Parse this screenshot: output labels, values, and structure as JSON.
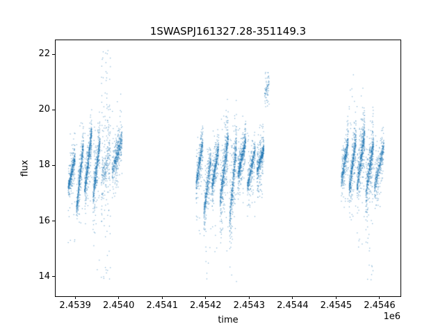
{
  "chart_data": {
    "type": "scatter",
    "title": "1SWASPJ161327.28-351149.3",
    "xlabel": "time",
    "ylabel": "flux",
    "x_offset_factor": "1e6",
    "xlim": [
      2453855,
      2454648
    ],
    "ylim": [
      13.3,
      22.5
    ],
    "xticks": {
      "values": [
        2453900,
        2454000,
        2454100,
        2454200,
        2454300,
        2454400,
        2454500,
        2454600
      ],
      "labels": [
        "2.4539",
        "2.4540",
        "2.4541",
        "2.4542",
        "2.4543",
        "2.4544",
        "2.4545",
        "2.4546"
      ]
    },
    "yticks": {
      "values": [
        14,
        16,
        18,
        20,
        22
      ],
      "labels": [
        "14",
        "16",
        "18",
        "20",
        "22"
      ]
    },
    "grid": false,
    "legend": null,
    "marker": {
      "color": "#1f77b4",
      "size": 1.2,
      "alpha": 0.6
    },
    "description": "Light curve: ~8500 points in three seasonal groups of nightly vertical streaks, flux mostly 16-20, extremes 13.7 to 22.2",
    "clusters": [
      {
        "x": [
          2453884,
          2453900
        ],
        "y_trend": [
          17.2,
          18.3
        ],
        "sigma": 0.35,
        "n": 400,
        "outlier_frac": 0.04,
        "outlier_range": [
          15.0,
          19.2
        ]
      },
      {
        "x": [
          2453903,
          2453919
        ],
        "y_trend": [
          16.4,
          18.8
        ],
        "sigma": 0.4,
        "n": 450,
        "outlier_frac": 0.03,
        "outlier_range": [
          15.9,
          19.6
        ]
      },
      {
        "x": [
          2453922,
          2453938
        ],
        "y_trend": [
          17.1,
          19.2
        ],
        "sigma": 0.45,
        "n": 520,
        "outlier_frac": 0.03,
        "outlier_range": [
          16.3,
          20.0
        ]
      },
      {
        "x": [
          2453941,
          2453957
        ],
        "y_trend": [
          16.8,
          18.9
        ],
        "sigma": 0.5,
        "n": 450,
        "outlier_frac": 0.06,
        "outlier_range": [
          14.2,
          19.8
        ]
      },
      {
        "x": [
          2453960,
          2453981
        ],
        "y_trend": [
          17.4,
          18.6
        ],
        "sigma": 0.9,
        "n": 280,
        "outlier_frac": 0.3,
        "outlier_range": [
          13.9,
          22.2
        ]
      },
      {
        "x": [
          2453985,
          2454008
        ],
        "y_trend": [
          17.8,
          19.0
        ],
        "sigma": 0.5,
        "n": 430,
        "outlier_frac": 0.05,
        "outlier_range": [
          16.5,
          20.6
        ]
      },
      {
        "x": [
          2454178,
          2454194
        ],
        "y_trend": [
          17.3,
          18.9
        ],
        "sigma": 0.4,
        "n": 380,
        "outlier_frac": 0.04,
        "outlier_range": [
          15.5,
          19.5
        ]
      },
      {
        "x": [
          2454196,
          2454212
        ],
        "y_trend": [
          16.3,
          18.2
        ],
        "sigma": 0.5,
        "n": 380,
        "outlier_frac": 0.06,
        "outlier_range": [
          13.9,
          19.0
        ]
      },
      {
        "x": [
          2454214,
          2454230
        ],
        "y_trend": [
          17.2,
          18.6
        ],
        "sigma": 0.4,
        "n": 420,
        "outlier_frac": 0.05,
        "outlier_range": [
          14.6,
          19.4
        ]
      },
      {
        "x": [
          2454233,
          2454252
        ],
        "y_trend": [
          16.7,
          19.0
        ],
        "sigma": 0.6,
        "n": 560,
        "outlier_frac": 0.06,
        "outlier_range": [
          14.9,
          19.9
        ]
      },
      {
        "x": [
          2454255,
          2454271
        ],
        "y_trend": [
          16.0,
          18.8
        ],
        "sigma": 0.7,
        "n": 430,
        "outlier_frac": 0.07,
        "outlier_range": [
          13.7,
          19.5
        ]
      },
      {
        "x": [
          2454274,
          2454292
        ],
        "y_trend": [
          17.6,
          18.9
        ],
        "sigma": 0.45,
        "n": 480,
        "outlier_frac": 0.03,
        "outlier_range": [
          16.5,
          19.8
        ]
      },
      {
        "x": [
          2454296,
          2454314
        ],
        "y_trend": [
          17.2,
          18.6
        ],
        "sigma": 0.4,
        "n": 380,
        "outlier_frac": 0.04,
        "outlier_range": [
          16.0,
          19.4
        ]
      },
      {
        "x": [
          2454318,
          2454334
        ],
        "y_trend": [
          17.8,
          18.6
        ],
        "sigma": 0.4,
        "n": 420,
        "outlier_frac": 0.04,
        "outlier_range": [
          16.6,
          19.5
        ]
      },
      {
        "x": [
          2454336,
          2454346
        ],
        "y_trend": [
          20.6,
          21.0
        ],
        "sigma": 0.3,
        "n": 70,
        "outlier_frac": 0.2,
        "outlier_range": [
          20.2,
          21.4
        ]
      },
      {
        "x": [
          2454512,
          2454528
        ],
        "y_trend": [
          17.4,
          18.9
        ],
        "sigma": 0.45,
        "n": 400,
        "outlier_frac": 0.04,
        "outlier_range": [
          16.2,
          19.6
        ]
      },
      {
        "x": [
          2454530,
          2454546
        ],
        "y_trend": [
          17.1,
          19.0
        ],
        "sigma": 0.5,
        "n": 440,
        "outlier_frac": 0.05,
        "outlier_range": [
          15.8,
          21.5
        ]
      },
      {
        "x": [
          2454548,
          2454566
        ],
        "y_trend": [
          17.2,
          19.2
        ],
        "sigma": 0.55,
        "n": 520,
        "outlier_frac": 0.05,
        "outlier_range": [
          14.8,
          20.9
        ]
      },
      {
        "x": [
          2454568,
          2454586
        ],
        "y_trend": [
          16.9,
          18.8
        ],
        "sigma": 0.55,
        "n": 500,
        "outlier_frac": 0.07,
        "outlier_range": [
          13.8,
          19.7
        ]
      },
      {
        "x": [
          2454588,
          2454610
        ],
        "y_trend": [
          17.2,
          18.7
        ],
        "sigma": 0.45,
        "n": 380,
        "outlier_frac": 0.04,
        "outlier_range": [
          16.4,
          19.3
        ]
      }
    ]
  }
}
